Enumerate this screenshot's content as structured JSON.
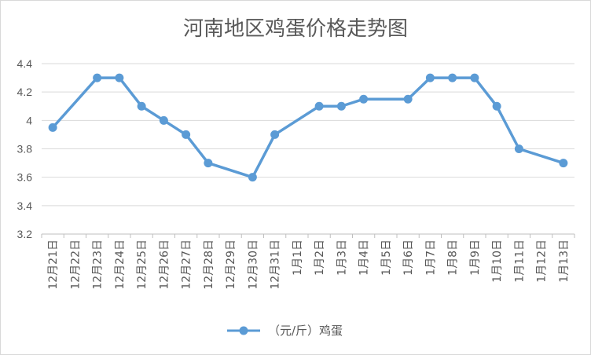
{
  "chart_data": {
    "type": "line",
    "title": "河南地区鸡蛋价格走势图",
    "xlabel": "",
    "ylabel": "",
    "ylim": [
      3.2,
      4.4
    ],
    "yticks": [
      "3.2",
      "3.4",
      "3.6",
      "3.8",
      "4",
      "4.2",
      "4.4"
    ],
    "grid": true,
    "legend": "bottom",
    "categories": [
      "12月21日",
      "12月22日",
      "12月23日",
      "12月24日",
      "12月25日",
      "12月26日",
      "12月27日",
      "12月28日",
      "12月29日",
      "12月30日",
      "12月31日",
      "1月1日",
      "1月2日",
      "1月3日",
      "1月4日",
      "1月5日",
      "1月6日",
      "1月7日",
      "1月8日",
      "1月9日",
      "1月10日",
      "1月11日",
      "1月12日",
      "1月13日"
    ],
    "series": [
      {
        "name": "（元/斤）鸡蛋",
        "color": "#5b9bd5",
        "points": [
          {
            "x": "12月21日",
            "y": 3.95
          },
          {
            "x": "12月23日",
            "y": 4.3
          },
          {
            "x": "12月24日",
            "y": 4.3
          },
          {
            "x": "12月25日",
            "y": 4.1
          },
          {
            "x": "12月26日",
            "y": 4.0
          },
          {
            "x": "12月27日",
            "y": 3.9
          },
          {
            "x": "12月28日",
            "y": 3.7
          },
          {
            "x": "12月30日",
            "y": 3.6
          },
          {
            "x": "12月31日",
            "y": 3.9
          },
          {
            "x": "1月2日",
            "y": 4.1
          },
          {
            "x": "1月3日",
            "y": 4.1
          },
          {
            "x": "1月4日",
            "y": 4.15
          },
          {
            "x": "1月6日",
            "y": 4.15
          },
          {
            "x": "1月7日",
            "y": 4.3
          },
          {
            "x": "1月8日",
            "y": 4.3
          },
          {
            "x": "1月9日",
            "y": 4.3
          },
          {
            "x": "1月10日",
            "y": 4.1
          },
          {
            "x": "1月11日",
            "y": 3.8
          },
          {
            "x": "1月13日",
            "y": 3.7
          }
        ]
      }
    ]
  }
}
